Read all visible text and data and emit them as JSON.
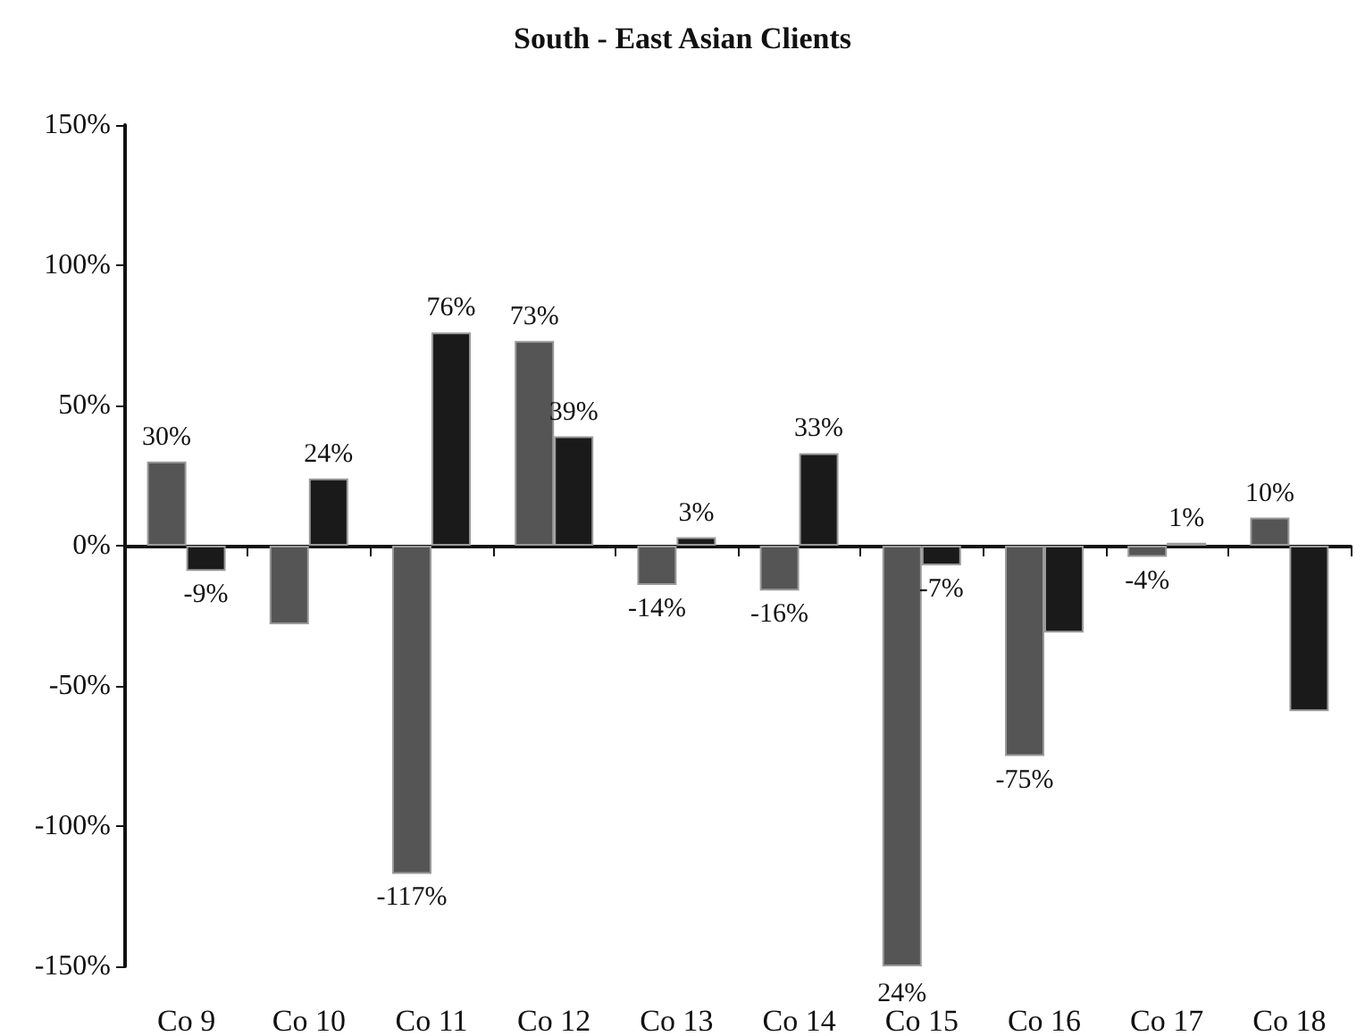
{
  "chart_data": {
    "type": "bar",
    "title": "South - East Asian Clients",
    "categories": [
      "Co 9",
      "Co 10",
      "Co 11",
      "Co 12",
      "Co 13",
      "Co 14",
      "Co 15",
      "Co 16",
      "Co 17",
      "Co 18"
    ],
    "series": [
      {
        "color": "#555555",
        "values": [
          30,
          -28,
          -117,
          73,
          -14,
          -16,
          -150,
          -75,
          -4,
          10
        ],
        "value_labels": [
          "30%",
          null,
          "-117%",
          "73%",
          "-14%",
          "-16%",
          null,
          "-75%",
          "-4%",
          "10%"
        ]
      },
      {
        "color": "#1a1a1a",
        "values": [
          -9,
          24,
          76,
          39,
          3,
          33,
          -7,
          -31,
          1,
          -59
        ],
        "value_labels": [
          "-9%",
          "24%",
          "76%",
          "39%",
          "3%",
          "33%",
          "-7%",
          null,
          "1%",
          null
        ]
      }
    ],
    "ylim": [
      -150,
      150
    ],
    "yticks": [
      {
        "value": -150,
        "label": "-150%"
      },
      {
        "value": -100,
        "label": "-100%"
      },
      {
        "value": -50,
        "label": "-50%"
      },
      {
        "value": 0,
        "label": "0%"
      },
      {
        "value": 50,
        "label": "50%"
      },
      {
        "value": 100,
        "label": "100%"
      },
      {
        "value": 150,
        "label": "150%"
      }
    ],
    "annotations": [
      {
        "text": "24%",
        "x": "Co 15",
        "y": -150
      }
    ]
  }
}
